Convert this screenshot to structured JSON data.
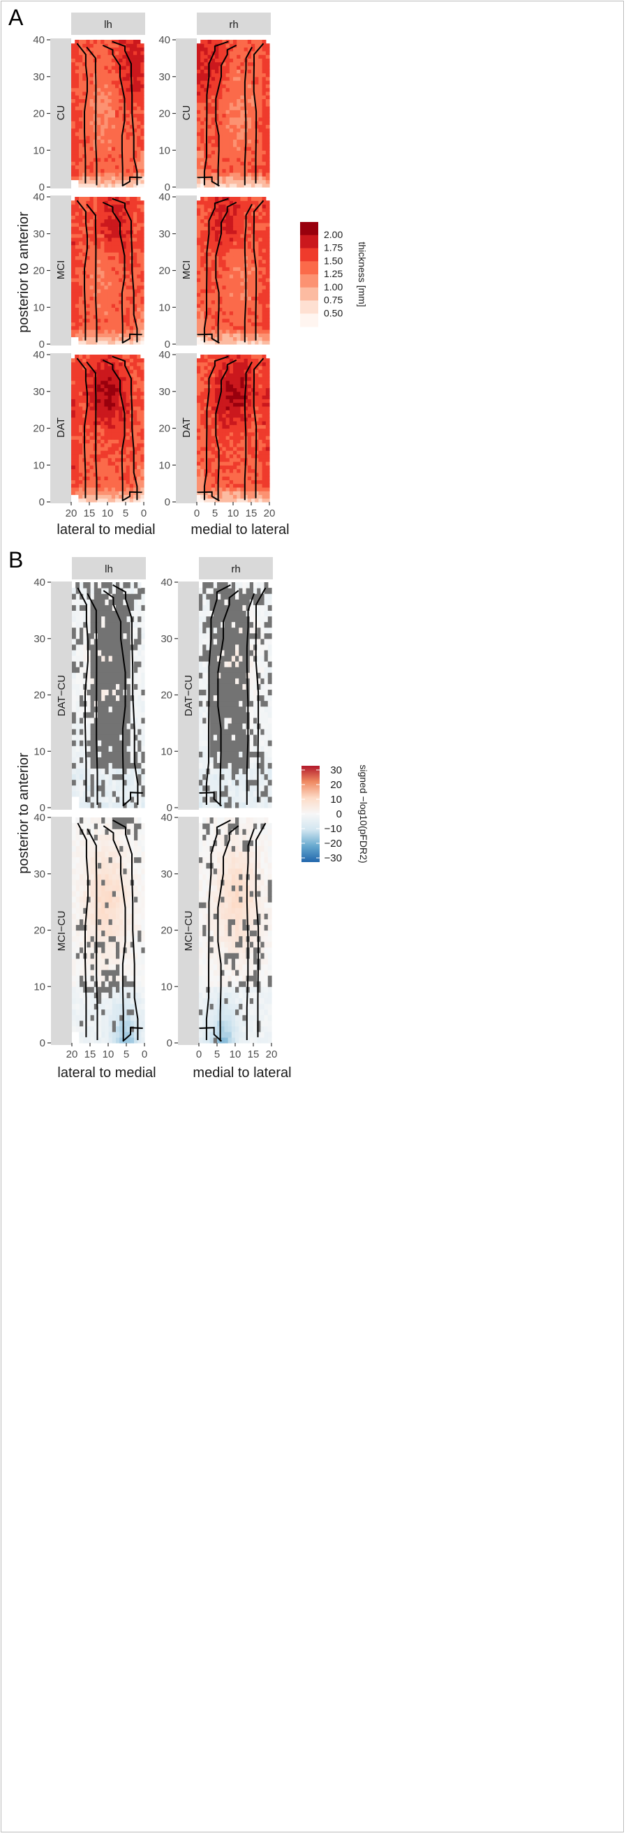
{
  "panel_letters": [
    "A",
    "B"
  ],
  "chart_data": [
    {
      "type": "heatmap",
      "panel": "A",
      "column_strips": [
        "lh",
        "rh"
      ],
      "row_strips": [
        "CU",
        "MCI",
        "DAT"
      ],
      "ylabel": "posterior to anterior",
      "xlabel_lh": "lateral to medial",
      "xlabel_rh": "medial to lateral",
      "x_ticks_lh": [
        "20",
        "15",
        "10",
        "5",
        "0"
      ],
      "x_ticks_rh": [
        "0",
        "5",
        "10",
        "15",
        "20"
      ],
      "y_ticks": [
        "0",
        "10",
        "20",
        "30",
        "40"
      ],
      "xlim_lh": [
        20,
        0
      ],
      "xlim_rh": [
        0,
        20
      ],
      "ylim": [
        0,
        40
      ],
      "legend_title": "thickness [mm]",
      "legend_labels": [
        "2.00",
        "1.75",
        "1.50",
        "1.25",
        "1.00",
        "0.75",
        "0.50"
      ],
      "legend_values": [
        2.0,
        1.75,
        1.5,
        1.25,
        1.0,
        0.75,
        0.5
      ],
      "colors": [
        "#99000d",
        "#cb181d",
        "#ef3b2c",
        "#fb6a4a",
        "#fc9272",
        "#fcbba1",
        "#fee0d2",
        "#fff5f0"
      ],
      "peak_thickness": {
        "CU": 1.75,
        "MCI": 1.75,
        "DAT": 2.0
      },
      "peak_location_rh": {
        "CU": [
          2,
          34
        ],
        "MCI": [
          8,
          32
        ],
        "DAT": [
          10,
          28
        ]
      }
    },
    {
      "type": "heatmap",
      "panel": "B",
      "column_strips": [
        "lh",
        "rh"
      ],
      "row_strips": [
        "DAT−CU",
        "MCI−CU"
      ],
      "ylabel": "posterior to anterior",
      "xlabel_lh": "lateral to medial",
      "xlabel_rh": "medial to lateral",
      "x_ticks_lh": [
        "20",
        "15",
        "10",
        "5",
        "0"
      ],
      "x_ticks_rh": [
        "0",
        "5",
        "10",
        "15",
        "20"
      ],
      "y_ticks": [
        "0",
        "10",
        "20",
        "30",
        "40"
      ],
      "xlim_lh": [
        20,
        0
      ],
      "xlim_rh": [
        0,
        20
      ],
      "ylim": [
        0,
        40
      ],
      "legend_title": "signed −log10(pFDR2)",
      "legend_labels": [
        "30",
        "20",
        "10",
        "0",
        "−10",
        "−20",
        "−30"
      ],
      "legend_values": [
        30,
        20,
        10,
        0,
        -10,
        -20,
        -30
      ],
      "colors": [
        "#b2182b",
        "#ef8a62",
        "#fddbc7",
        "#f7f7f7",
        "#d1e5f0",
        "#67a9cf",
        "#2166ac"
      ],
      "nonsignificant_color": "#737373"
    }
  ]
}
